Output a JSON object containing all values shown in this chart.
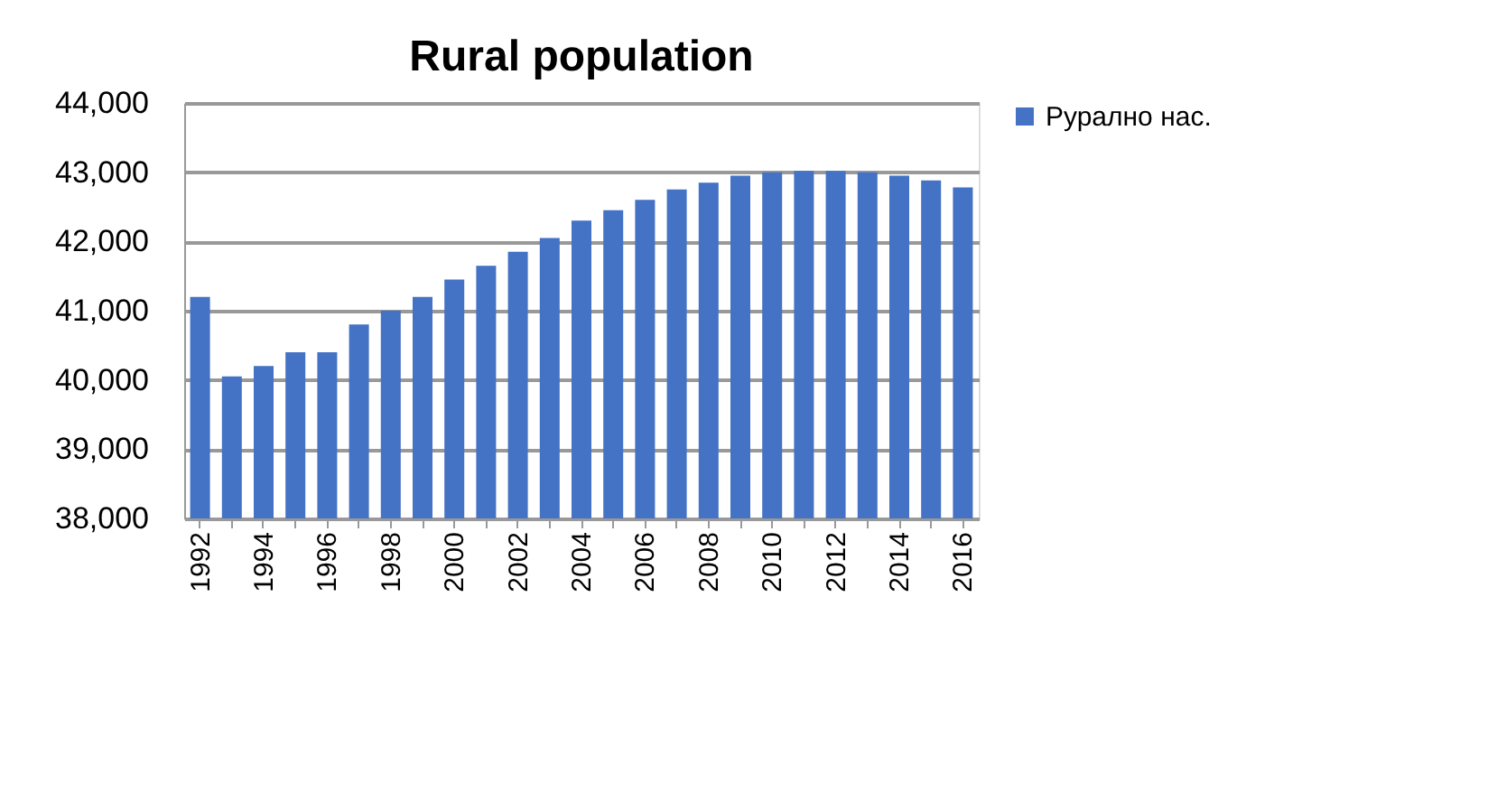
{
  "chart_data": {
    "type": "bar",
    "title": "Rural population",
    "categories": [
      "1992",
      null,
      "1994",
      null,
      "1996",
      null,
      "1998",
      null,
      "2000",
      null,
      "2002",
      null,
      "2004",
      null,
      "2006",
      null,
      "2008",
      null,
      "2010",
      null,
      "2012",
      null,
      "2014",
      null,
      "2016"
    ],
    "series": [
      {
        "name": "Рурално нас.",
        "color": "#4472c4",
        "values": [
          41200,
          40050,
          40200,
          40400,
          40400,
          40800,
          41000,
          41200,
          41450,
          41650,
          41850,
          42050,
          42300,
          42450,
          42600,
          42750,
          42850,
          42950,
          43000,
          43020,
          43020,
          43000,
          42950,
          42880,
          42780
        ]
      }
    ],
    "ylim": [
      38000,
      44000
    ],
    "yticks": [
      {
        "value": 38000,
        "label": "38,000"
      },
      {
        "value": 39000,
        "label": "39,000"
      },
      {
        "value": 40000,
        "label": "40,000"
      },
      {
        "value": 41000,
        "label": "41,000"
      },
      {
        "value": 42000,
        "label": "42,000"
      },
      {
        "value": 43000,
        "label": "43,000"
      },
      {
        "value": 44000,
        "label": "44,000"
      }
    ],
    "grid": "y",
    "legend": "right"
  }
}
